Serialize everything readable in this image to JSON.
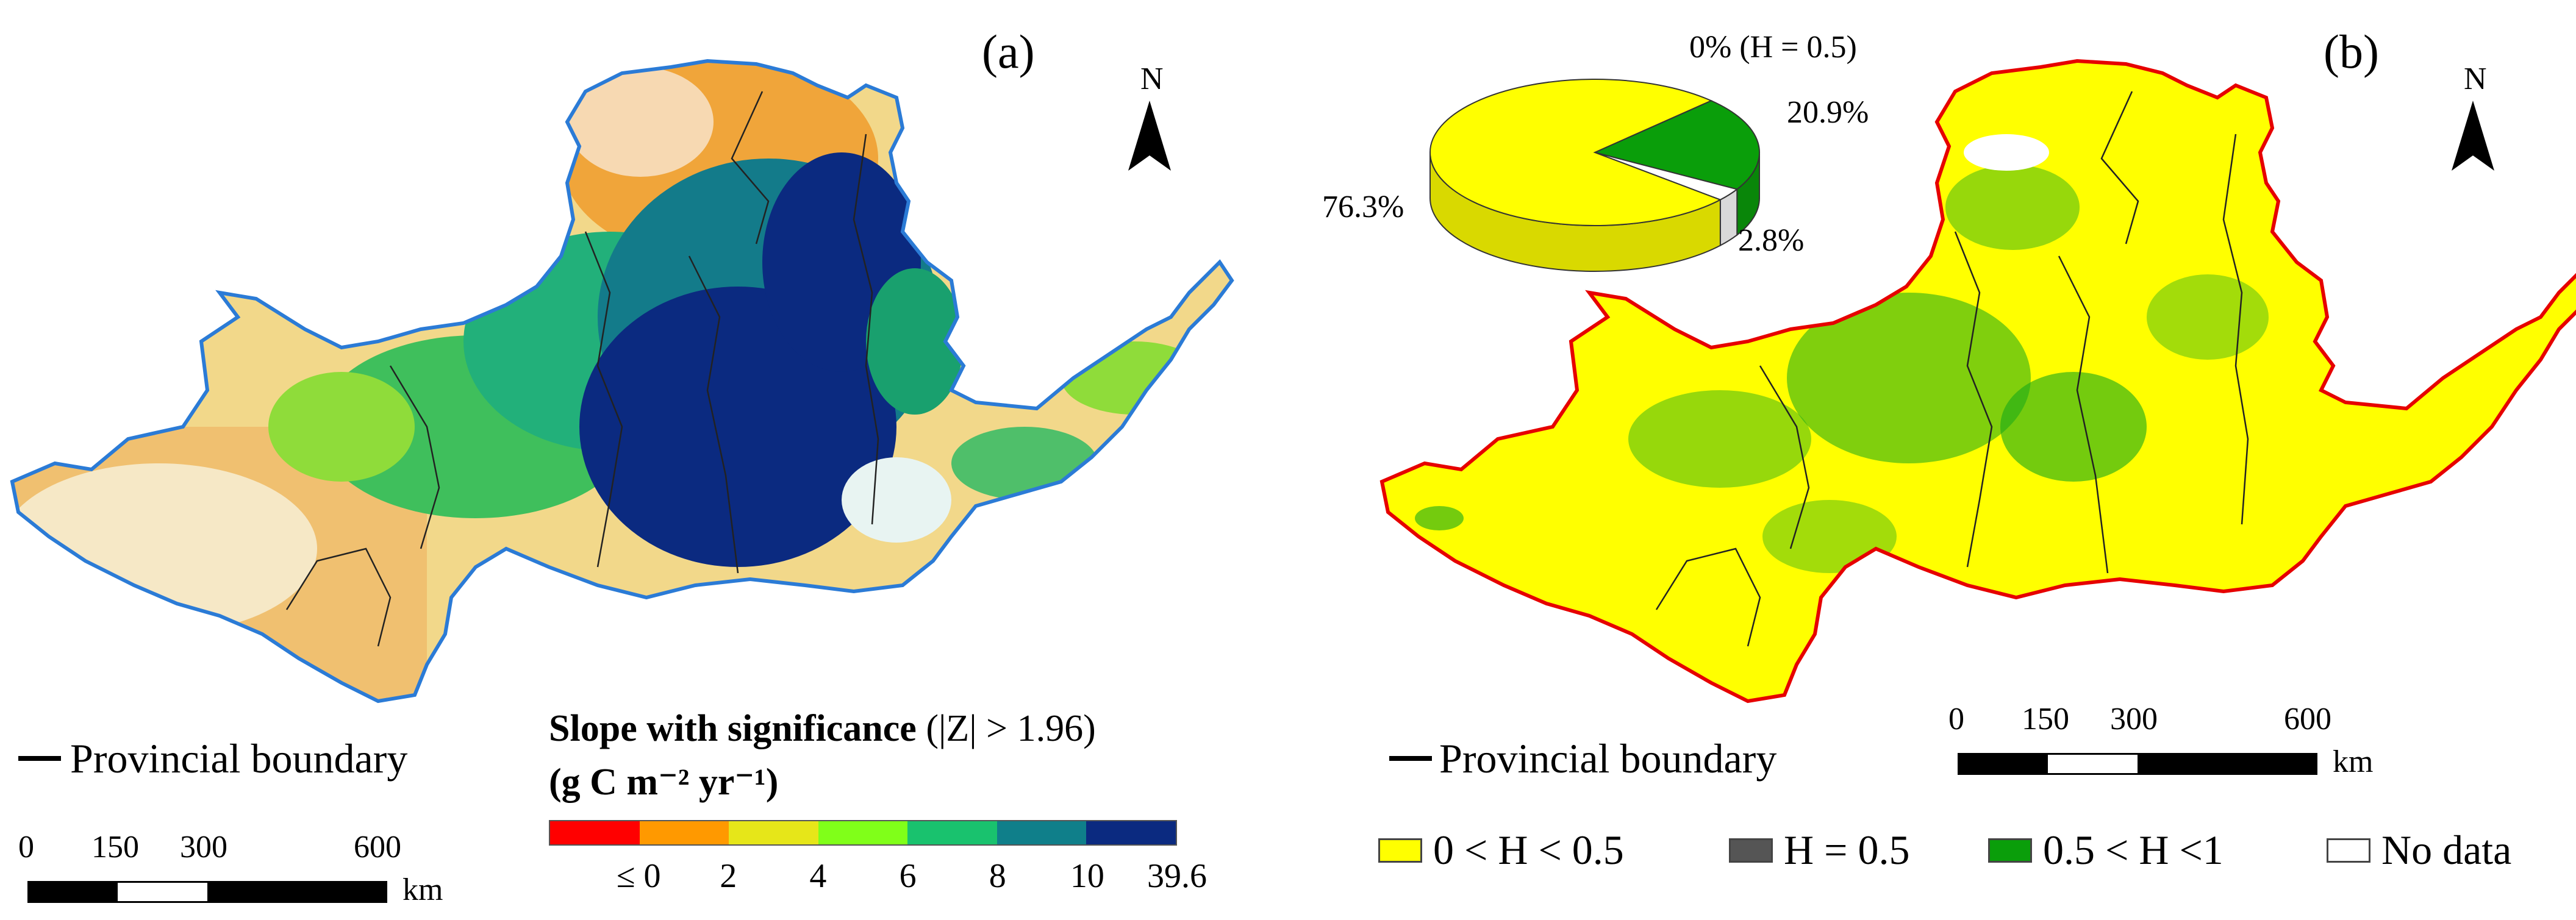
{
  "panels": {
    "a": {
      "label": "(a)",
      "north_label": "N",
      "legend_boundary": "Provincial boundary",
      "scale": {
        "ticks": [
          "0",
          "150",
          "300",
          "600"
        ],
        "unit": "km"
      },
      "colorbar": {
        "title_bold": "Slope with significance",
        "title_rest": " (|Z| > 1.96)",
        "units": "(g C m⁻² yr⁻¹)",
        "colors": [
          "#ff0000",
          "#ff9900",
          "#e6e619",
          "#80ff19",
          "#19c26e",
          "#0f7f8a",
          "#0b2a80"
        ],
        "ticks": [
          "≤ 0",
          "2",
          "4",
          "6",
          "8",
          "10",
          "39.6"
        ]
      },
      "colors": {
        "outline": "#2b7bd6"
      }
    },
    "b": {
      "label": "(b)",
      "north_label": "N",
      "legend_boundary": "Provincial boundary",
      "scale": {
        "ticks": [
          "0",
          "150",
          "300",
          "600"
        ],
        "unit": "km"
      },
      "legend": [
        {
          "label": "0 < H < 0.5",
          "color": "#ffff00"
        },
        {
          "label": "H = 0.5",
          "color": "#555555"
        },
        {
          "label": "0.5 < H <1",
          "color": "#0a9e0a"
        },
        {
          "label": "No data",
          "color": "#ffffff"
        }
      ],
      "colors": {
        "outline": "#e60000"
      }
    }
  },
  "chart_data": {
    "type": "pie",
    "title": "",
    "categories": [
      "0 < H < 0.5",
      "H = 0.5",
      "0.5 < H <1",
      "No data"
    ],
    "values": [
      76.3,
      0,
      20.9,
      2.8
    ],
    "labels": [
      "76.3%",
      "0% (H = 0.5)",
      "20.9%",
      "2.8%"
    ],
    "colors": [
      "#ffff00",
      "#555555",
      "#0a9e0a",
      "#ffffff"
    ]
  }
}
